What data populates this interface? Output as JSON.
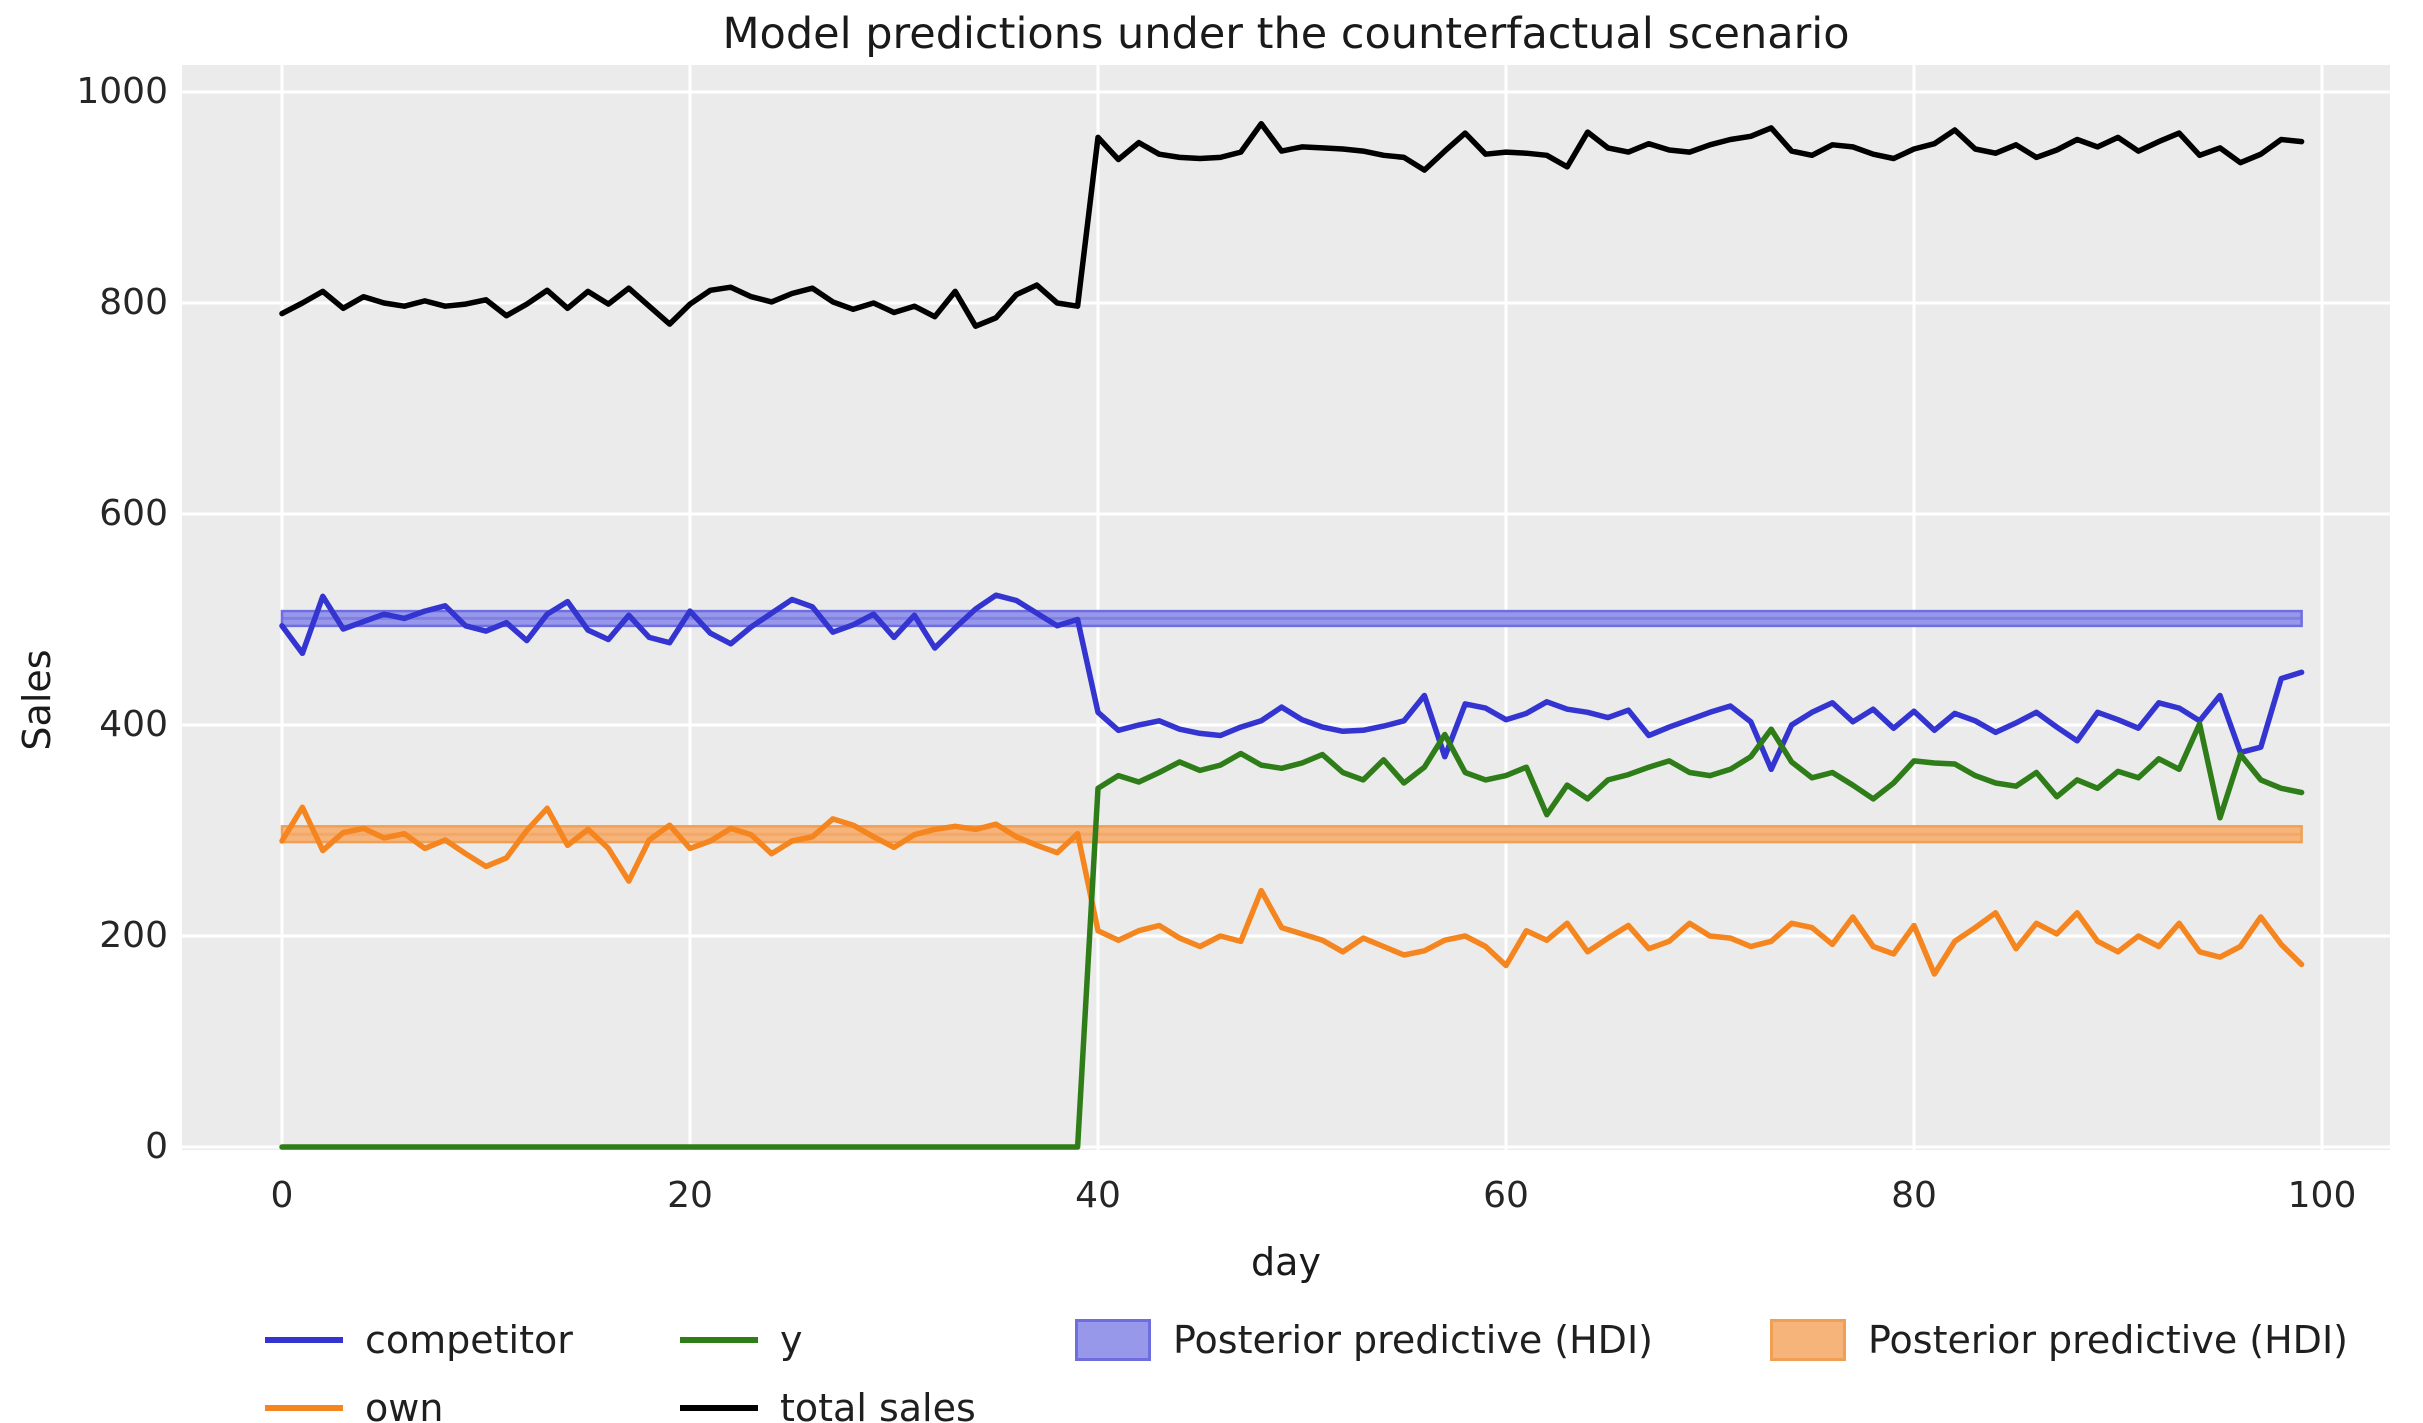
{
  "chart_data": {
    "type": "line",
    "title": "Model predictions under the counterfactual scenario",
    "xlabel": "day",
    "ylabel": "Sales",
    "xticks": [
      0,
      20,
      40,
      60,
      80,
      100
    ],
    "yticks": [
      0,
      200,
      400,
      600,
      800,
      1000
    ],
    "xlim": [
      -5,
      105
    ],
    "ylim": [
      -5,
      1025
    ],
    "grid": true,
    "plot_background": "#ebebeb",
    "grid_color": "#ffffff",
    "x_start": 0,
    "x_step": 1,
    "n_points": 100,
    "series": [
      {
        "name": "competitor",
        "color": "#3434d1",
        "values": [
          494,
          468,
          522,
          491,
          498,
          505,
          501,
          508,
          513,
          494,
          489,
          497,
          480,
          505,
          517,
          490,
          481,
          504,
          483,
          478,
          508,
          487,
          477,
          493,
          506,
          519,
          512,
          488,
          495,
          505,
          483,
          504,
          473,
          492,
          510,
          523,
          518,
          506,
          494,
          500,
          412,
          395,
          400,
          404,
          396,
          392,
          390,
          398,
          404,
          417,
          405,
          398,
          394,
          395,
          399,
          404,
          428,
          370,
          420,
          416,
          405,
          411,
          422,
          415,
          412,
          407,
          414,
          390,
          398,
          405,
          412,
          418,
          403,
          358,
          400,
          412,
          421,
          403,
          415,
          397,
          413,
          395,
          411,
          404,
          393,
          402,
          412,
          398,
          385,
          412,
          405,
          397,
          421,
          416,
          404,
          428,
          374,
          379,
          444,
          450
        ]
      },
      {
        "name": "own",
        "color": "#f5851e",
        "values": [
          290,
          322,
          281,
          298,
          302,
          293,
          297,
          283,
          291,
          278,
          266,
          274,
          300,
          321,
          286,
          301,
          283,
          252,
          291,
          305,
          283,
          290,
          302,
          296,
          278,
          290,
          294,
          311,
          305,
          294,
          284,
          296,
          301,
          304,
          301,
          306,
          294,
          286,
          279,
          297,
          205,
          196,
          205,
          210,
          198,
          190,
          200,
          195,
          243,
          208,
          202,
          196,
          185,
          198,
          190,
          182,
          186,
          196,
          200,
          190,
          172,
          205,
          196,
          212,
          185,
          198,
          210,
          188,
          195,
          212,
          200,
          198,
          190,
          195,
          212,
          208,
          192,
          218,
          190,
          183,
          210,
          164,
          195,
          208,
          222,
          188,
          212,
          202,
          222,
          195,
          185,
          200,
          190,
          212,
          185,
          180,
          190,
          218,
          192,
          173
        ]
      },
      {
        "name": "y",
        "color": "#2e7d19",
        "values": [
          0,
          0,
          0,
          0,
          0,
          0,
          0,
          0,
          0,
          0,
          0,
          0,
          0,
          0,
          0,
          0,
          0,
          0,
          0,
          0,
          0,
          0,
          0,
          0,
          0,
          0,
          0,
          0,
          0,
          0,
          0,
          0,
          0,
          0,
          0,
          0,
          0,
          0,
          0,
          0,
          340,
          352,
          346,
          355,
          365,
          357,
          362,
          373,
          362,
          359,
          364,
          372,
          355,
          348,
          367,
          345,
          360,
          391,
          355,
          348,
          352,
          360,
          315,
          343,
          330,
          348,
          353,
          360,
          366,
          355,
          352,
          358,
          370,
          396,
          365,
          350,
          355,
          343,
          330,
          345,
          366,
          364,
          363,
          352,
          345,
          342,
          355,
          332,
          348,
          340,
          356,
          350,
          368,
          358,
          401,
          312,
          372,
          348,
          340,
          336
        ]
      },
      {
        "name": "total sales",
        "color": "#000000",
        "values": [
          790,
          800,
          811,
          795,
          806,
          800,
          797,
          802,
          797,
          799,
          803,
          788,
          799,
          812,
          795,
          811,
          799,
          814,
          797,
          780,
          799,
          812,
          815,
          806,
          801,
          809,
          814,
          801,
          794,
          800,
          791,
          797,
          787,
          811,
          778,
          786,
          808,
          817,
          800,
          797,
          957,
          936,
          952,
          941,
          938,
          937,
          938,
          943,
          970,
          944,
          948,
          947,
          946,
          944,
          940,
          938,
          926,
          944,
          961,
          941,
          943,
          942,
          940,
          929,
          962,
          947,
          943,
          951,
          945,
          943,
          950,
          955,
          958,
          966,
          944,
          940,
          950,
          948,
          941,
          937,
          946,
          951,
          964,
          946,
          942,
          950,
          938,
          945,
          955,
          948,
          957,
          944,
          953,
          961,
          940,
          947,
          933,
          941,
          955,
          953
        ]
      }
    ],
    "hdi_bands": [
      {
        "name": "Posterior predictive (HDI)",
        "fill": "#9898eb",
        "edge": "#6e6ee0",
        "lo": 494,
        "hi": 508,
        "mean": 501,
        "x0": 0,
        "x1": 99
      },
      {
        "name": "Posterior predictive (HDI)",
        "fill": "#f6b47b",
        "edge": "#f0a055",
        "lo": 289,
        "hi": 304,
        "mean": 296.5,
        "x0": 0,
        "x1": 99
      }
    ],
    "legend": {
      "position": "below-chart",
      "entries": [
        {
          "label": "competitor",
          "kind": "line",
          "color": "#3434d1",
          "col": 0,
          "row": 0
        },
        {
          "label": "own",
          "kind": "line",
          "color": "#f5851e",
          "col": 0,
          "row": 1
        },
        {
          "label": "y",
          "kind": "line",
          "color": "#2e7d19",
          "col": 1,
          "row": 0
        },
        {
          "label": "total sales",
          "kind": "line",
          "color": "#000000",
          "col": 1,
          "row": 1
        },
        {
          "label": "Posterior predictive (HDI)",
          "kind": "patch",
          "fill": "#9898eb",
          "edge": "#6e6ee0",
          "col": 2,
          "row": 0
        },
        {
          "label": "Posterior predictive (HDI)",
          "kind": "patch",
          "fill": "#f6b47b",
          "edge": "#f0a055",
          "col": 3,
          "row": 0
        }
      ]
    }
  }
}
